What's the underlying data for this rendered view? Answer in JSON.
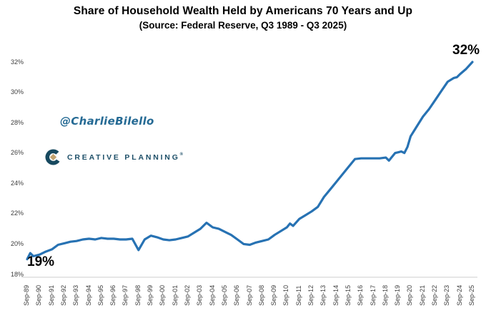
{
  "header": {
    "title": "Share of Household Wealth Held by Americans 70 Years and Up",
    "subtitle": "(Source: Federal Reserve, Q3 1989 - Q3 2025)"
  },
  "watermark": "@CharlieBilello",
  "logo": {
    "brand": "CREATIVE PLANNING",
    "trademark": "®",
    "icon": "creative-planning-c-diamond",
    "icon_color": "#17495f",
    "diamond_color": "#c2a370",
    "text_color": "#1d4f68"
  },
  "annotations": {
    "start_label": "19%",
    "end_label": "32%"
  },
  "colors": {
    "line": "#2772b3",
    "axis_line": "#d6d6d6",
    "tick_text": "#3d3d3d",
    "watermark_blue": "#256a94",
    "title_text": "#000000"
  },
  "chart_data": {
    "type": "line",
    "title": "Share of Household Wealth Held by Americans 70 Years and Up",
    "subtitle": "(Source: Federal Reserve, Q3 1989 - Q3 2025)",
    "xlabel": "",
    "ylabel": "",
    "grid": false,
    "legend_position": "none",
    "line_color": "#2772b3",
    "ylim": [
      18,
      32
    ],
    "y_unit": "%",
    "y_tick_labels": [
      "18%",
      "20%",
      "22%",
      "24%",
      "26%",
      "28%",
      "30%",
      "32%"
    ],
    "y_tick_values": [
      18,
      20,
      22,
      24,
      26,
      28,
      30,
      32
    ],
    "x_tick_labels": [
      "Sep-89",
      "Sep-90",
      "Sep-91",
      "Sep-92",
      "Sep-93",
      "Sep-94",
      "Sep-95",
      "Sep-96",
      "Sep-97",
      "Sep-98",
      "Sep-99",
      "Sep-00",
      "Sep-01",
      "Sep-02",
      "Sep-03",
      "Sep-04",
      "Sep-05",
      "Sep-06",
      "Sep-07",
      "Sep-08",
      "Sep-09",
      "Sep-10",
      "Sep-11",
      "Sep-12",
      "Sep-13",
      "Sep-14",
      "Sep-15",
      "Sep-16",
      "Sep-17",
      "Sep-18",
      "Sep-19",
      "Sep-20",
      "Sep-21",
      "Sep-22",
      "Sep-23",
      "Sep-24",
      "Sep-25"
    ],
    "series": [
      {
        "name": "Share of household wealth held by Americans 70 years and up",
        "x_unit": "years_after_Sep-1989",
        "points": [
          [
            0,
            19.0
          ],
          [
            0.25,
            19.4
          ],
          [
            0.5,
            19.2
          ],
          [
            1,
            19.3
          ],
          [
            1.5,
            19.5
          ],
          [
            2,
            19.65
          ],
          [
            2.5,
            19.95
          ],
          [
            3,
            20.05
          ],
          [
            3.5,
            20.15
          ],
          [
            4,
            20.2
          ],
          [
            4.5,
            20.3
          ],
          [
            5,
            20.35
          ],
          [
            5.5,
            20.3
          ],
          [
            6,
            20.4
          ],
          [
            6.5,
            20.35
          ],
          [
            7,
            20.35
          ],
          [
            7.5,
            20.3
          ],
          [
            8,
            20.3
          ],
          [
            8.5,
            20.35
          ],
          [
            9,
            19.6
          ],
          [
            9.5,
            20.3
          ],
          [
            10,
            20.55
          ],
          [
            10.5,
            20.45
          ],
          [
            11,
            20.3
          ],
          [
            11.5,
            20.25
          ],
          [
            12,
            20.3
          ],
          [
            12.5,
            20.4
          ],
          [
            13,
            20.5
          ],
          [
            13.5,
            20.75
          ],
          [
            14,
            21.0
          ],
          [
            14.5,
            21.4
          ],
          [
            15,
            21.1
          ],
          [
            15.5,
            21.0
          ],
          [
            16,
            20.8
          ],
          [
            16.5,
            20.6
          ],
          [
            17,
            20.3
          ],
          [
            17.5,
            20.0
          ],
          [
            18,
            19.95
          ],
          [
            18.5,
            20.1
          ],
          [
            19,
            20.2
          ],
          [
            19.5,
            20.3
          ],
          [
            20,
            20.6
          ],
          [
            20.5,
            20.85
          ],
          [
            21,
            21.1
          ],
          [
            21.25,
            21.35
          ],
          [
            21.5,
            21.2
          ],
          [
            22,
            21.65
          ],
          [
            22.5,
            21.9
          ],
          [
            23,
            22.15
          ],
          [
            23.5,
            22.45
          ],
          [
            24,
            23.1
          ],
          [
            24.5,
            23.6
          ],
          [
            25,
            24.1
          ],
          [
            25.5,
            24.6
          ],
          [
            26,
            25.1
          ],
          [
            26.5,
            25.6
          ],
          [
            27,
            25.65
          ],
          [
            27.5,
            25.65
          ],
          [
            28,
            25.65
          ],
          [
            28.5,
            25.65
          ],
          [
            29,
            25.7
          ],
          [
            29.25,
            25.5
          ],
          [
            29.75,
            26.0
          ],
          [
            30,
            26.05
          ],
          [
            30.25,
            26.1
          ],
          [
            30.5,
            26.0
          ],
          [
            30.75,
            26.4
          ],
          [
            31,
            27.1
          ],
          [
            31.5,
            27.75
          ],
          [
            32,
            28.4
          ],
          [
            32.5,
            28.9
          ],
          [
            33,
            29.5
          ],
          [
            33.5,
            30.1
          ],
          [
            34,
            30.7
          ],
          [
            34.5,
            30.95
          ],
          [
            34.75,
            31.0
          ],
          [
            35,
            31.2
          ],
          [
            35.5,
            31.55
          ],
          [
            36,
            32.0
          ]
        ]
      }
    ],
    "point_annotations": [
      {
        "x": "Sep-89",
        "value": 19,
        "label": "19%"
      },
      {
        "x": "Sep-25",
        "value": 32,
        "label": "32%"
      }
    ]
  }
}
